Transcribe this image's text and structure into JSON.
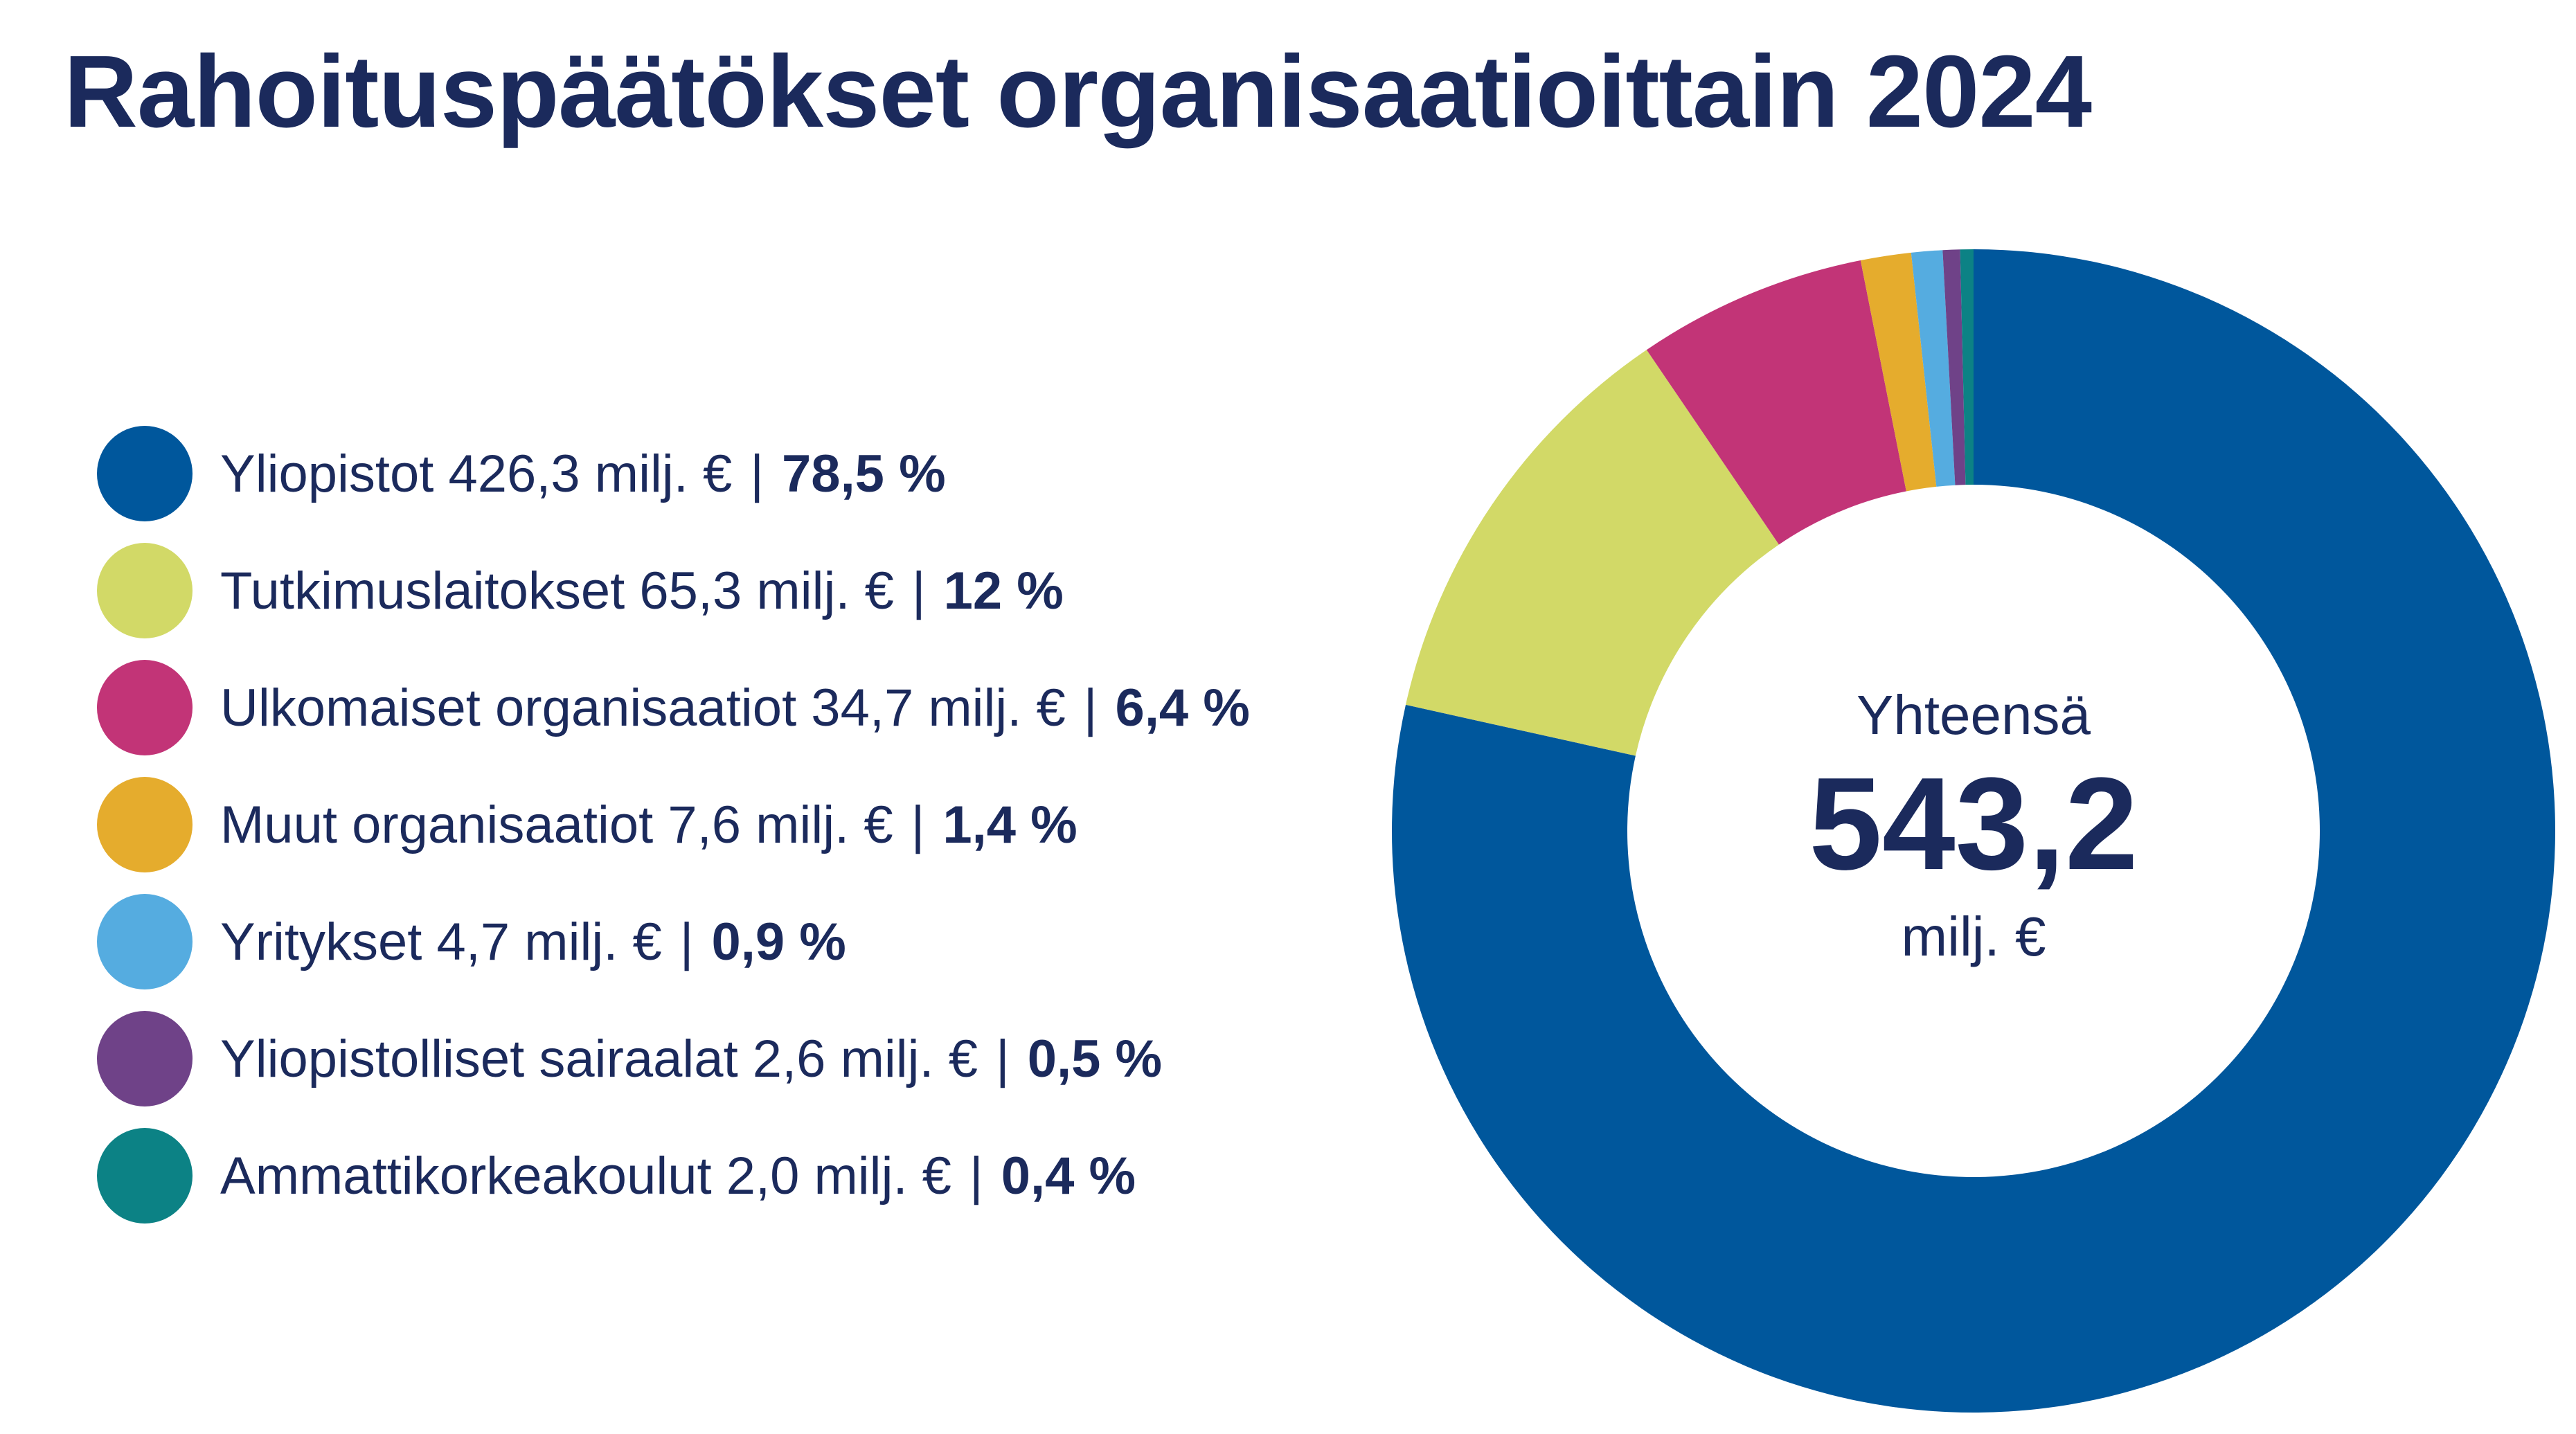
{
  "title": "Rahoituspäätökset organisaatioittain 2024",
  "chart_data": {
    "type": "pie",
    "variant": "donut",
    "title": "Rahoituspäätökset organisaatioittain 2024",
    "unit": "milj. €",
    "total": {
      "label": "Yhteensä",
      "value": "543,2",
      "unit": "milj. €"
    },
    "legend_position": "left",
    "slices": [
      {
        "label": "Yliopistot",
        "amount": 426.3,
        "amount_text": "426,3 milj. €",
        "percent": 78.5,
        "percent_text": "78,5 %",
        "color": "#00579c"
      },
      {
        "label": "Tutkimuslaitokset",
        "amount": 65.3,
        "amount_text": "65,3 milj. €",
        "percent": 12,
        "percent_text": "12 %",
        "color": "#d2d967"
      },
      {
        "label": "Ulkomaiset organisaatiot",
        "amount": 34.7,
        "amount_text": "34,7 milj. €",
        "percent": 6.4,
        "percent_text": "6,4 %",
        "color": "#c23477"
      },
      {
        "label": "Muut organisaatiot",
        "amount": 7.6,
        "amount_text": "7,6 milj. €",
        "percent": 1.4,
        "percent_text": "1,4 %",
        "color": "#e5ac2d"
      },
      {
        "label": "Yritykset",
        "amount": 4.7,
        "amount_text": "4,7 milj. €",
        "percent": 0.9,
        "percent_text": "0,9 %",
        "color": "#55ace0"
      },
      {
        "label": "Yliopistolliset sairaalat",
        "amount": 2.6,
        "amount_text": "2,6 milj. €",
        "percent": 0.5,
        "percent_text": "0,5 %",
        "color": "#6f4288"
      },
      {
        "label": "Ammattikorkeakoulut",
        "amount": 2.0,
        "amount_text": "2,0 milj. €",
        "percent": 0.4,
        "percent_text": "0,4 %",
        "color": "#0c8285"
      }
    ]
  }
}
